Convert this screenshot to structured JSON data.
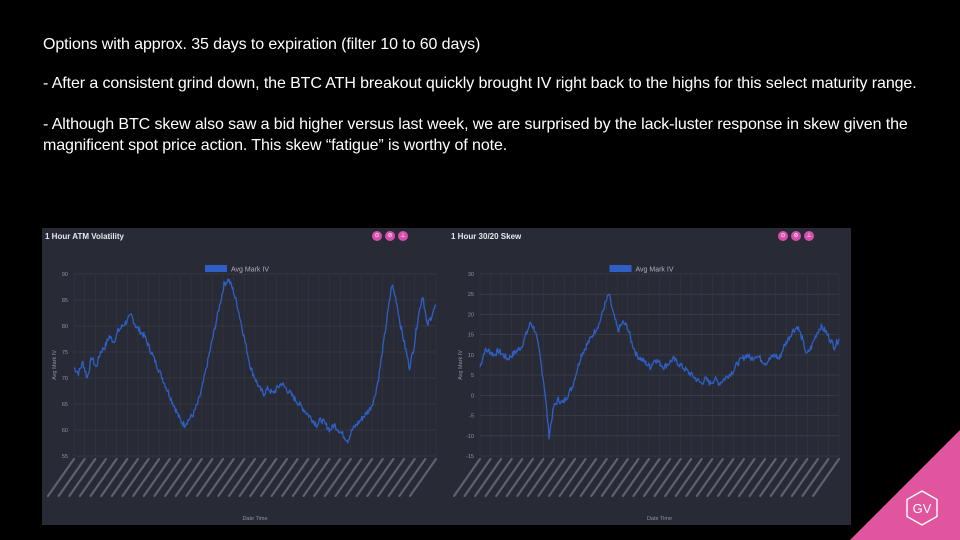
{
  "notes": {
    "line1": "Options with approx. 35 days to expiration (filter 10 to 60 days)",
    "line2": "- After a consistent grind down, the BTC ATH breakout quickly brought IV right back to the highs for this select maturity range.",
    "line3": "- Although BTC skew also saw a bid higher versus last week, we are surprised by the lack-luster response in skew given the magnificent spot price action. This skew “fatigue” is worthy of note."
  },
  "logo_text": "GV",
  "accent_color": "#e0559e",
  "chart_data": [
    {
      "type": "line",
      "title": "1 Hour ATM Volatility",
      "legend": "Avg Mark IV",
      "legend_position": "top-center",
      "xlabel": "Date Time",
      "ylabel": "Avg Mark IV",
      "ylim": [
        55,
        90
      ],
      "yticks": [
        55,
        60,
        65,
        70,
        75,
        80,
        85,
        90
      ],
      "grid": true,
      "line_color": "#2f5fc4",
      "series": [
        {
          "name": "Avg Mark IV",
          "values": [
            72,
            71,
            73,
            70,
            74,
            72,
            75,
            76,
            78,
            77,
            79,
            80,
            81,
            82,
            80,
            79,
            78,
            76,
            74,
            72,
            70,
            68,
            66,
            64,
            62,
            61,
            62,
            63,
            65,
            68,
            72,
            76,
            80,
            84,
            88,
            89,
            87,
            84,
            80,
            76,
            72,
            70,
            68,
            67,
            68,
            67,
            68,
            69,
            68,
            67,
            66,
            65,
            64,
            63,
            62,
            61,
            62,
            61,
            60,
            61,
            60,
            59,
            58,
            60,
            61,
            62,
            63,
            64,
            66,
            70,
            76,
            82,
            88,
            85,
            80,
            76,
            72,
            76,
            82,
            86,
            80,
            82,
            84
          ]
        }
      ]
    },
    {
      "type": "line",
      "title": "1 Hour 30/20 Skew",
      "legend": "Avg Mark IV",
      "legend_position": "top-center",
      "xlabel": "Date Time",
      "ylabel": "Avg Mark IV",
      "ylim": [
        -15,
        30
      ],
      "yticks": [
        -15,
        -10,
        -5,
        0,
        5,
        10,
        15,
        20,
        25,
        30
      ],
      "grid": true,
      "line_color": "#2f5fc4",
      "series": [
        {
          "name": "Avg Mark IV",
          "values": [
            7,
            11,
            11,
            10,
            11,
            10,
            9,
            10,
            11,
            12,
            15,
            18,
            16,
            10,
            2,
            -10,
            -3,
            -1,
            -2,
            0,
            2,
            6,
            10,
            12,
            14,
            16,
            18,
            22,
            25,
            20,
            16,
            18,
            17,
            13,
            10,
            9,
            8,
            7,
            9,
            8,
            7,
            8,
            9,
            8,
            7,
            6,
            5,
            4,
            3,
            4,
            3,
            4,
            3,
            4,
            5,
            6,
            8,
            9,
            10,
            9,
            10,
            9,
            8,
            9,
            10,
            9,
            12,
            14,
            16,
            17,
            14,
            10,
            12,
            15,
            17,
            16,
            14,
            12,
            14
          ]
        }
      ]
    }
  ]
}
